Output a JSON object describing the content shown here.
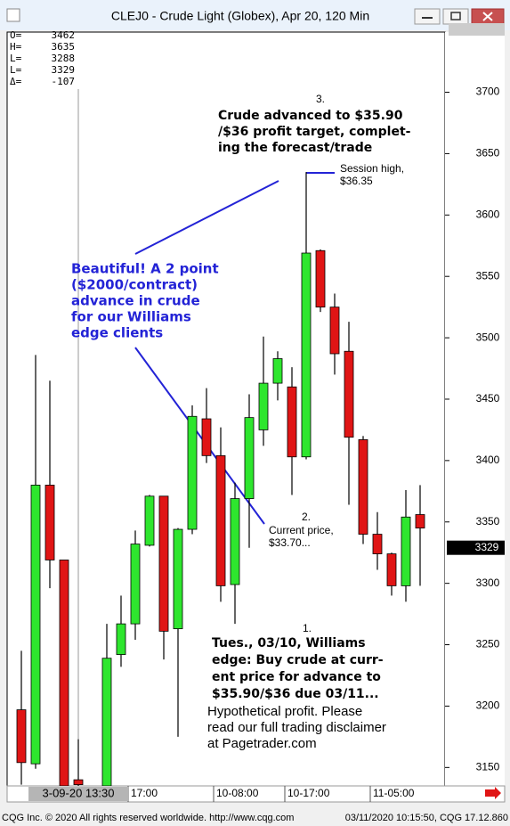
{
  "window_title": "CLEJ0 - Crude Light (Globex), Apr 20, 120 Min",
  "footer_left": "CQG Inc. © 2020 All rights reserved worldwide. http://www.cqg.com",
  "footer_right": "03/11/2020 10:15:50, CQG 17.12.860",
  "chart_data": {
    "type": "candlestick",
    "categories": [
      null,
      null,
      null,
      null,
      null,
      null,
      null,
      null,
      "17:00",
      null,
      null,
      null,
      null,
      null,
      "10-08:00",
      null,
      null,
      null,
      null,
      "10-17:00",
      null,
      null,
      null,
      null,
      null,
      "11-05:00",
      null,
      null,
      null
    ],
    "cursor_label": "3-09-20  13:30",
    "open": [
      3197,
      3153,
      3380,
      3319,
      3140,
      null,
      3135,
      3242,
      3267,
      3331,
      3371,
      3263,
      3344,
      3434,
      3404,
      3299,
      3369,
      3425,
      3463,
      3460,
      3403,
      3571,
      3525,
      3489,
      3417,
      3340,
      3324,
      3298,
      3356
    ],
    "high": [
      3245,
      3486,
      3465,
      3319,
      3173,
      null,
      3267,
      3290,
      3343,
      3372,
      3371,
      3345,
      3445,
      3459,
      3427,
      3382,
      3454,
      3501,
      3489,
      3476,
      3635,
      3572,
      3536,
      3513,
      3420,
      3358,
      3325,
      3376,
      3380
    ],
    "low": [
      3136,
      3149,
      3296,
      3135,
      3135,
      null,
      3135,
      3232,
      3254,
      3330,
      3238,
      3175,
      3340,
      3398,
      3285,
      3267,
      3329,
      3412,
      3449,
      3372,
      3401,
      3521,
      3470,
      3364,
      3332,
      3311,
      3290,
      3285,
      3298
    ],
    "close": [
      3154,
      3380,
      3319,
      3135,
      3136,
      null,
      3239,
      3267,
      3332,
      3371,
      3261,
      3344,
      3436,
      3404,
      3298,
      3369,
      3435,
      3463,
      3483,
      3403,
      3569,
      3525,
      3487,
      3419,
      3340,
      3324,
      3298,
      3354,
      3345
    ],
    "up_color": "#2ee62e",
    "down_color": "#e01515",
    "ylim": [
      3135,
      3749
    ],
    "yticks": [
      3150,
      3200,
      3250,
      3300,
      3350,
      3400,
      3450,
      3500,
      3550,
      3600,
      3650,
      3700
    ],
    "last_price": 3329,
    "top_price": 3752,
    "info": [
      {
        "label": "O=",
        "value": 3462
      },
      {
        "label": "H=",
        "value": 3635
      },
      {
        "label": "L=",
        "value": 3288
      },
      {
        "label": "L=",
        "value": 3329
      },
      {
        "label": "Δ=",
        "value": -107
      }
    ],
    "annotations": [
      {
        "number": "3.",
        "lines": [
          "Crude advanced to $35.90",
          "/$36 profit target, complet-",
          "ing the forecast/trade"
        ]
      },
      {
        "lines": [
          "Session high,",
          "$36.35"
        ]
      },
      {
        "lines": [
          "Beautiful!  A 2 point",
          "($2000/contract)",
          "advance in crude",
          "for our Williams",
          "edge clients"
        ]
      },
      {
        "number": "2.",
        "lines": [
          "Current price,",
          "$33.70..."
        ]
      },
      {
        "number": "1.",
        "lines": [
          "Tues., 03/10, Williams",
          "edge: Buy crude at curr-",
          "ent price for advance to",
          "$35.90/$36 due 03/11..."
        ]
      },
      {
        "lines": [
          "Hypothetical profit.  Please",
          "read our full trading disclaimer",
          "at Pagetrader.com"
        ]
      }
    ]
  }
}
